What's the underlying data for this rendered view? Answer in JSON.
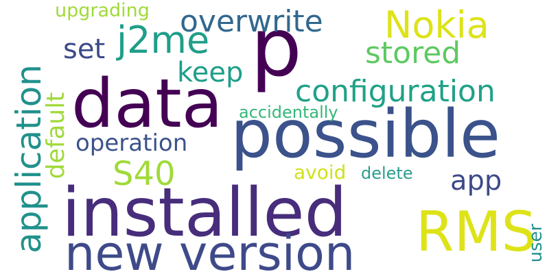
{
  "words": {
    "p": {
      "text": "p",
      "color": "#440154"
    },
    "data": {
      "text": "data",
      "color": "#440154"
    },
    "possible": {
      "text": "possible",
      "color": "#3b528b"
    },
    "installed": {
      "text": "installed",
      "color": "#472d7b"
    },
    "new_version": {
      "text": "new version",
      "color": "#3e4a89"
    },
    "rms": {
      "text": "RMS",
      "color": "#dde318"
    },
    "application": {
      "text": "application",
      "color": "#21918c"
    },
    "configuration": {
      "text": "configuration",
      "color": "#1fa187"
    },
    "nokia": {
      "text": "Nokia",
      "color": "#dde318"
    },
    "j2me": {
      "text": "j2me",
      "color": "#1f9e89"
    },
    "overwrite": {
      "text": "overwrite",
      "color": "#31688e"
    },
    "stored": {
      "text": "stored",
      "color": "#5ec962"
    },
    "set": {
      "text": "set",
      "color": "#3e4a89"
    },
    "keep": {
      "text": "keep",
      "color": "#1f9e89"
    },
    "default": {
      "text": "default",
      "color": "#a0da39"
    },
    "operation": {
      "text": "operation",
      "color": "#3b528b"
    },
    "s40": {
      "text": "S40",
      "color": "#a0da39"
    },
    "app": {
      "text": "app",
      "color": "#3e4a89"
    },
    "upgrading": {
      "text": "upgrading",
      "color": "#a0da39"
    },
    "accidentally": {
      "text": "accidentally",
      "color": "#35b779"
    },
    "avoid": {
      "text": "avoid",
      "color": "#d0e11c"
    },
    "delete": {
      "text": "delete",
      "color": "#2a9d8f"
    },
    "user": {
      "text": "user",
      "color": "#21918c"
    }
  }
}
